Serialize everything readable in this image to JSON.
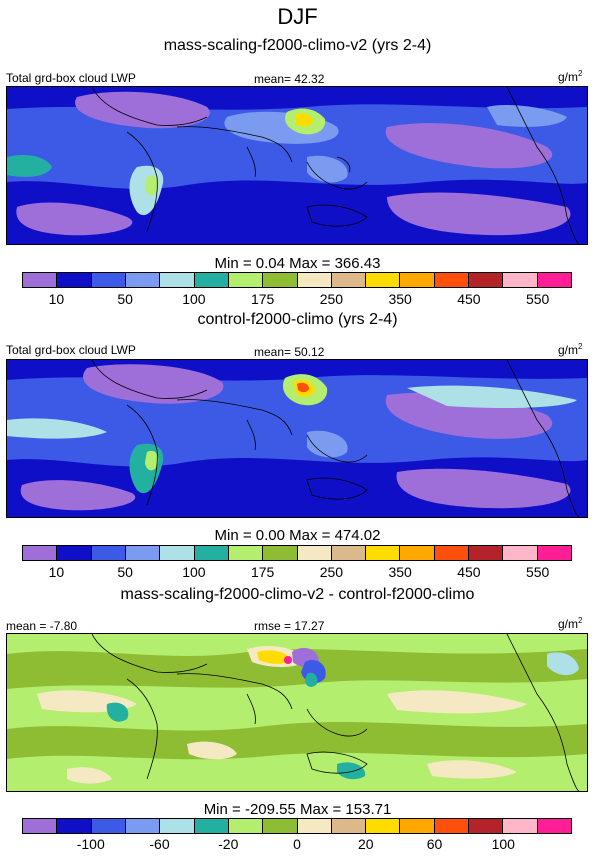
{
  "title": "DJF",
  "panels": [
    {
      "subtitle": "mass-scaling-f2000-climo-v2 (yrs 2-4)",
      "left_label": "Total grd-box cloud LWP",
      "center_label": "mean=  42.32",
      "units": "g/m",
      "units_sup": "2",
      "minmax": "Min =   0.04 Max = 366.43",
      "colorbar": {
        "colors": [
          "#9e6fd8",
          "#0f0fc8",
          "#3c5ae6",
          "#7a9bf0",
          "#aee0e8",
          "#23b0a0",
          "#b4ee6e",
          "#8ebc32",
          "#f5e9c4",
          "#dcb98a",
          "#ffdc00",
          "#ffa800",
          "#ff4f0c",
          "#b4232a",
          "#ffb6c8",
          "#ff1e96"
        ],
        "ticks": [
          "10",
          "50",
          "100",
          "175",
          "250",
          "350",
          "450",
          "550"
        ]
      }
    },
    {
      "subtitle": "control-f2000-climo (yrs 2-4)",
      "left_label": "Total grd-box cloud LWP",
      "center_label": "mean=  50.12",
      "units": "g/m",
      "units_sup": "2",
      "minmax": "Min =   0.00 Max = 474.02",
      "colorbar": {
        "colors": [
          "#9e6fd8",
          "#0f0fc8",
          "#3c5ae6",
          "#7a9bf0",
          "#aee0e8",
          "#23b0a0",
          "#b4ee6e",
          "#8ebc32",
          "#f5e9c4",
          "#dcb98a",
          "#ffdc00",
          "#ffa800",
          "#ff4f0c",
          "#b4232a",
          "#ffb6c8",
          "#ff1e96"
        ],
        "ticks": [
          "10",
          "50",
          "100",
          "175",
          "250",
          "350",
          "450",
          "550"
        ]
      }
    },
    {
      "subtitle": "mass-scaling-f2000-climo-v2 - control-f2000-climo",
      "left_label": "mean = -7.80",
      "center_label": "rmse =  17.27",
      "units": "g/m",
      "units_sup": "2",
      "minmax": "Min = -209.55 Max = 153.71",
      "colorbar": {
        "colors": [
          "#9e6fd8",
          "#0f0fc8",
          "#3c5ae6",
          "#7a9bf0",
          "#aee0e8",
          "#23b0a0",
          "#b4ee6e",
          "#8ebc32",
          "#f5e9c4",
          "#dcb98a",
          "#ffdc00",
          "#ffa800",
          "#ff4f0c",
          "#b4232a",
          "#ffb6c8",
          "#ff1e96"
        ],
        "ticks": [
          "-100",
          "-60",
          "-20",
          "0",
          "20",
          "60",
          "100"
        ]
      }
    }
  ],
  "chart_data": [
    {
      "type": "heatmap",
      "title": "DJF",
      "subtitle": "mass-scaling-f2000-climo-v2 (yrs 2-4)",
      "variable": "Total grd-box cloud LWP",
      "units": "g/m2",
      "mean": 42.32,
      "min": 0.04,
      "max": 366.43,
      "levels": [
        10,
        25,
        50,
        75,
        100,
        125,
        175,
        200,
        250,
        300,
        350,
        400,
        450,
        500,
        550
      ]
    },
    {
      "type": "heatmap",
      "subtitle": "control-f2000-climo (yrs 2-4)",
      "variable": "Total grd-box cloud LWP",
      "units": "g/m2",
      "mean": 50.12,
      "min": 0.0,
      "max": 474.02,
      "levels": [
        10,
        25,
        50,
        75,
        100,
        125,
        175,
        200,
        250,
        300,
        350,
        400,
        450,
        500,
        550
      ]
    },
    {
      "type": "heatmap",
      "subtitle": "mass-scaling-f2000-climo-v2 - control-f2000-climo",
      "units": "g/m2",
      "mean": -7.8,
      "rmse": 17.27,
      "min": -209.55,
      "max": 153.71,
      "levels": [
        -100,
        -80,
        -60,
        -40,
        -20,
        -10,
        0,
        10,
        20,
        40,
        60,
        80,
        100
      ]
    }
  ]
}
